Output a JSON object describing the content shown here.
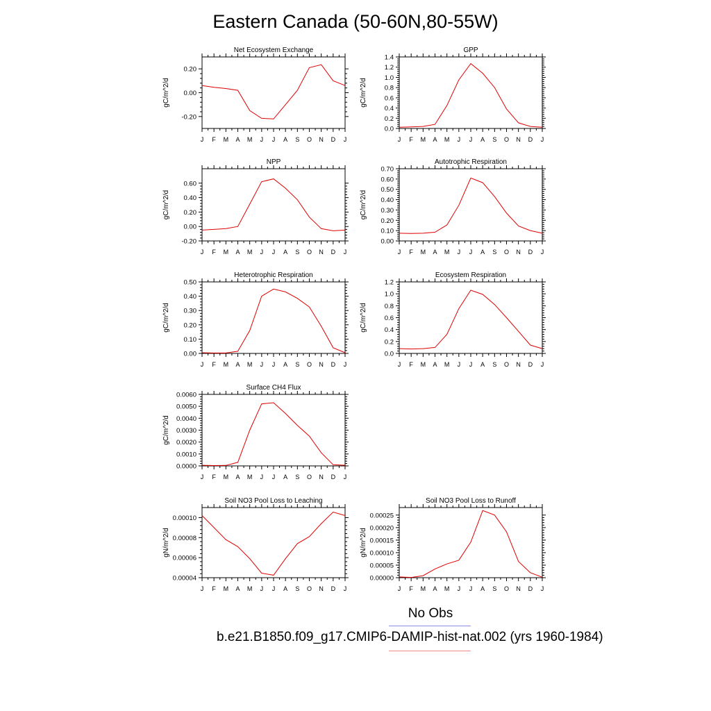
{
  "title": "Eastern Canada (50-60N,80-55W)",
  "legend": {
    "obs_label": "No Obs",
    "obs_color": "#8a8ae8",
    "case_label": "b.e21.B1850.f09_g17.CMIP6-DAMIP-hist-nat.002 (yrs 1960-1984)",
    "case_color": "#ee8a8a"
  },
  "line_color": "#e00000",
  "chart_data": [
    {
      "type": "line",
      "title": "Net Ecosystem Exchange",
      "ylabel": "gC/m^2/d",
      "categories": [
        "J",
        "F",
        "M",
        "A",
        "M",
        "J",
        "J",
        "A",
        "S",
        "O",
        "N",
        "D",
        "J"
      ],
      "values": [
        0.06,
        0.045,
        0.035,
        0.02,
        -0.15,
        -0.215,
        -0.22,
        -0.1,
        0.02,
        0.21,
        0.235,
        0.1,
        0.06
      ],
      "ylim": [
        -0.3,
        0.3
      ],
      "yticks": [
        -0.2,
        0.0,
        0.2
      ],
      "ytick_labels": [
        "-0.20",
        "0.00",
        "0.20"
      ]
    },
    {
      "type": "line",
      "title": "GPP",
      "ylabel": "gC/m^2/d",
      "categories": [
        "J",
        "F",
        "M",
        "A",
        "M",
        "J",
        "J",
        "A",
        "S",
        "O",
        "N",
        "D",
        "J"
      ],
      "values": [
        0.025,
        0.03,
        0.04,
        0.08,
        0.45,
        0.95,
        1.27,
        1.08,
        0.8,
        0.38,
        0.11,
        0.04,
        0.025
      ],
      "ylim": [
        0,
        1.4
      ],
      "yticks": [
        0,
        0.2,
        0.4,
        0.6,
        0.8,
        1.0,
        1.2,
        1.4
      ],
      "ytick_labels": [
        "0.0",
        "0.2",
        "0.4",
        "0.6",
        "0.8",
        "1.0",
        "1.2",
        "1.4"
      ]
    },
    {
      "type": "line",
      "title": "NPP",
      "ylabel": "gC/m^2/d",
      "categories": [
        "J",
        "F",
        "M",
        "A",
        "M",
        "J",
        "J",
        "A",
        "S",
        "O",
        "N",
        "D",
        "J"
      ],
      "values": [
        -0.05,
        -0.04,
        -0.03,
        0.0,
        0.31,
        0.62,
        0.66,
        0.53,
        0.37,
        0.13,
        -0.03,
        -0.06,
        -0.05
      ],
      "ylim": [
        -0.2,
        0.8
      ],
      "yticks": [
        -0.2,
        0.0,
        0.2,
        0.4,
        0.6
      ],
      "ytick_labels": [
        "-0.20",
        "0.00",
        "0.20",
        "0.40",
        "0.60"
      ]
    },
    {
      "type": "line",
      "title": "Autotrophic Respiration",
      "ylabel": "gC/m^2/d",
      "categories": [
        "J",
        "F",
        "M",
        "A",
        "M",
        "J",
        "J",
        "A",
        "S",
        "O",
        "N",
        "D",
        "J"
      ],
      "values": [
        0.075,
        0.073,
        0.075,
        0.085,
        0.155,
        0.345,
        0.61,
        0.565,
        0.43,
        0.27,
        0.145,
        0.1,
        0.075
      ],
      "ylim": [
        0,
        0.7
      ],
      "yticks": [
        0,
        0.1,
        0.2,
        0.3,
        0.4,
        0.5,
        0.6,
        0.7
      ],
      "ytick_labels": [
        "0.00",
        "0.10",
        "0.20",
        "0.30",
        "0.40",
        "0.50",
        "0.60",
        "0.70"
      ]
    },
    {
      "type": "line",
      "title": "Heterotrophic Respiration",
      "ylabel": "gC/m^2/d",
      "categories": [
        "J",
        "F",
        "M",
        "A",
        "M",
        "J",
        "J",
        "A",
        "S",
        "O",
        "N",
        "D",
        "J"
      ],
      "values": [
        0.005,
        0.003,
        0.003,
        0.015,
        0.16,
        0.4,
        0.45,
        0.43,
        0.385,
        0.325,
        0.19,
        0.04,
        0.005
      ],
      "ylim": [
        0,
        0.5
      ],
      "yticks": [
        0,
        0.1,
        0.2,
        0.3,
        0.4,
        0.5
      ],
      "ytick_labels": [
        "0.00",
        "0.10",
        "0.20",
        "0.30",
        "0.40",
        "0.50"
      ]
    },
    {
      "type": "line",
      "title": "Ecosystem Respiration",
      "ylabel": "gC/m^2/d",
      "categories": [
        "J",
        "F",
        "M",
        "A",
        "M",
        "J",
        "J",
        "A",
        "S",
        "O",
        "N",
        "D",
        "J"
      ],
      "values": [
        0.08,
        0.075,
        0.08,
        0.1,
        0.32,
        0.75,
        1.06,
        0.99,
        0.82,
        0.6,
        0.37,
        0.14,
        0.08
      ],
      "ylim": [
        0,
        1.2
      ],
      "yticks": [
        0,
        0.2,
        0.4,
        0.6,
        0.8,
        1.0,
        1.2
      ],
      "ytick_labels": [
        "0.0",
        "0.2",
        "0.4",
        "0.6",
        "0.8",
        "1.0",
        "1.2"
      ]
    },
    {
      "type": "line",
      "title": "Surface CH4 Flux",
      "ylabel": "gC/m^2/d",
      "categories": [
        "J",
        "F",
        "M",
        "A",
        "M",
        "J",
        "J",
        "A",
        "S",
        "O",
        "N",
        "D",
        "J"
      ],
      "values": [
        5e-05,
        3e-05,
        4e-05,
        0.0003,
        0.003,
        0.0052,
        0.0053,
        0.0044,
        0.0034,
        0.0025,
        0.0011,
        0.0001,
        5e-05
      ],
      "ylim": [
        0,
        0.006
      ],
      "yticks": [
        0,
        0.001,
        0.002,
        0.003,
        0.004,
        0.005,
        0.006
      ],
      "ytick_labels": [
        "0.0000",
        "0.0010",
        "0.0020",
        "0.0030",
        "0.0040",
        "0.0050",
        "0.0060"
      ]
    },
    {
      "type": "line",
      "title": "Soil NO3 Pool Loss to Leaching",
      "ylabel": "gN/m^2/d",
      "categories": [
        "J",
        "F",
        "M",
        "A",
        "M",
        "J",
        "J",
        "A",
        "S",
        "O",
        "N",
        "D",
        "J"
      ],
      "values": [
        0.000102,
        9e-05,
        7.8e-05,
        7.1e-05,
        5.9e-05,
        4.45e-05,
        4.25e-05,
        5.9e-05,
        7.4e-05,
        8.1e-05,
        9.4e-05,
        0.0001055,
        0.000102
      ],
      "ylim": [
        4e-05,
        0.00011
      ],
      "yticks": [
        4e-05,
        6e-05,
        8e-05,
        0.0001
      ],
      "ytick_labels": [
        "0.00004",
        "0.00006",
        "0.00008",
        "0.00010"
      ]
    },
    {
      "type": "line",
      "title": "Soil NO3 Pool Loss to Runoff",
      "ylabel": "gN/m^2/d",
      "categories": [
        "J",
        "F",
        "M",
        "A",
        "M",
        "J",
        "J",
        "A",
        "S",
        "O",
        "N",
        "D",
        "J"
      ],
      "values": [
        3e-06,
        1e-06,
        8e-06,
        3.5e-05,
        5.5e-05,
        7e-05,
        0.000142,
        0.000268,
        0.00025,
        0.000183,
        6.5e-05,
        2e-05,
        2e-06
      ],
      "ylim": [
        0,
        0.00028
      ],
      "yticks": [
        0,
        5e-05,
        0.0001,
        0.00015,
        0.0002,
        0.00025
      ],
      "ytick_labels": [
        "0.00000",
        "0.00005",
        "0.00010",
        "0.00015",
        "0.00020",
        "0.00025"
      ]
    }
  ]
}
